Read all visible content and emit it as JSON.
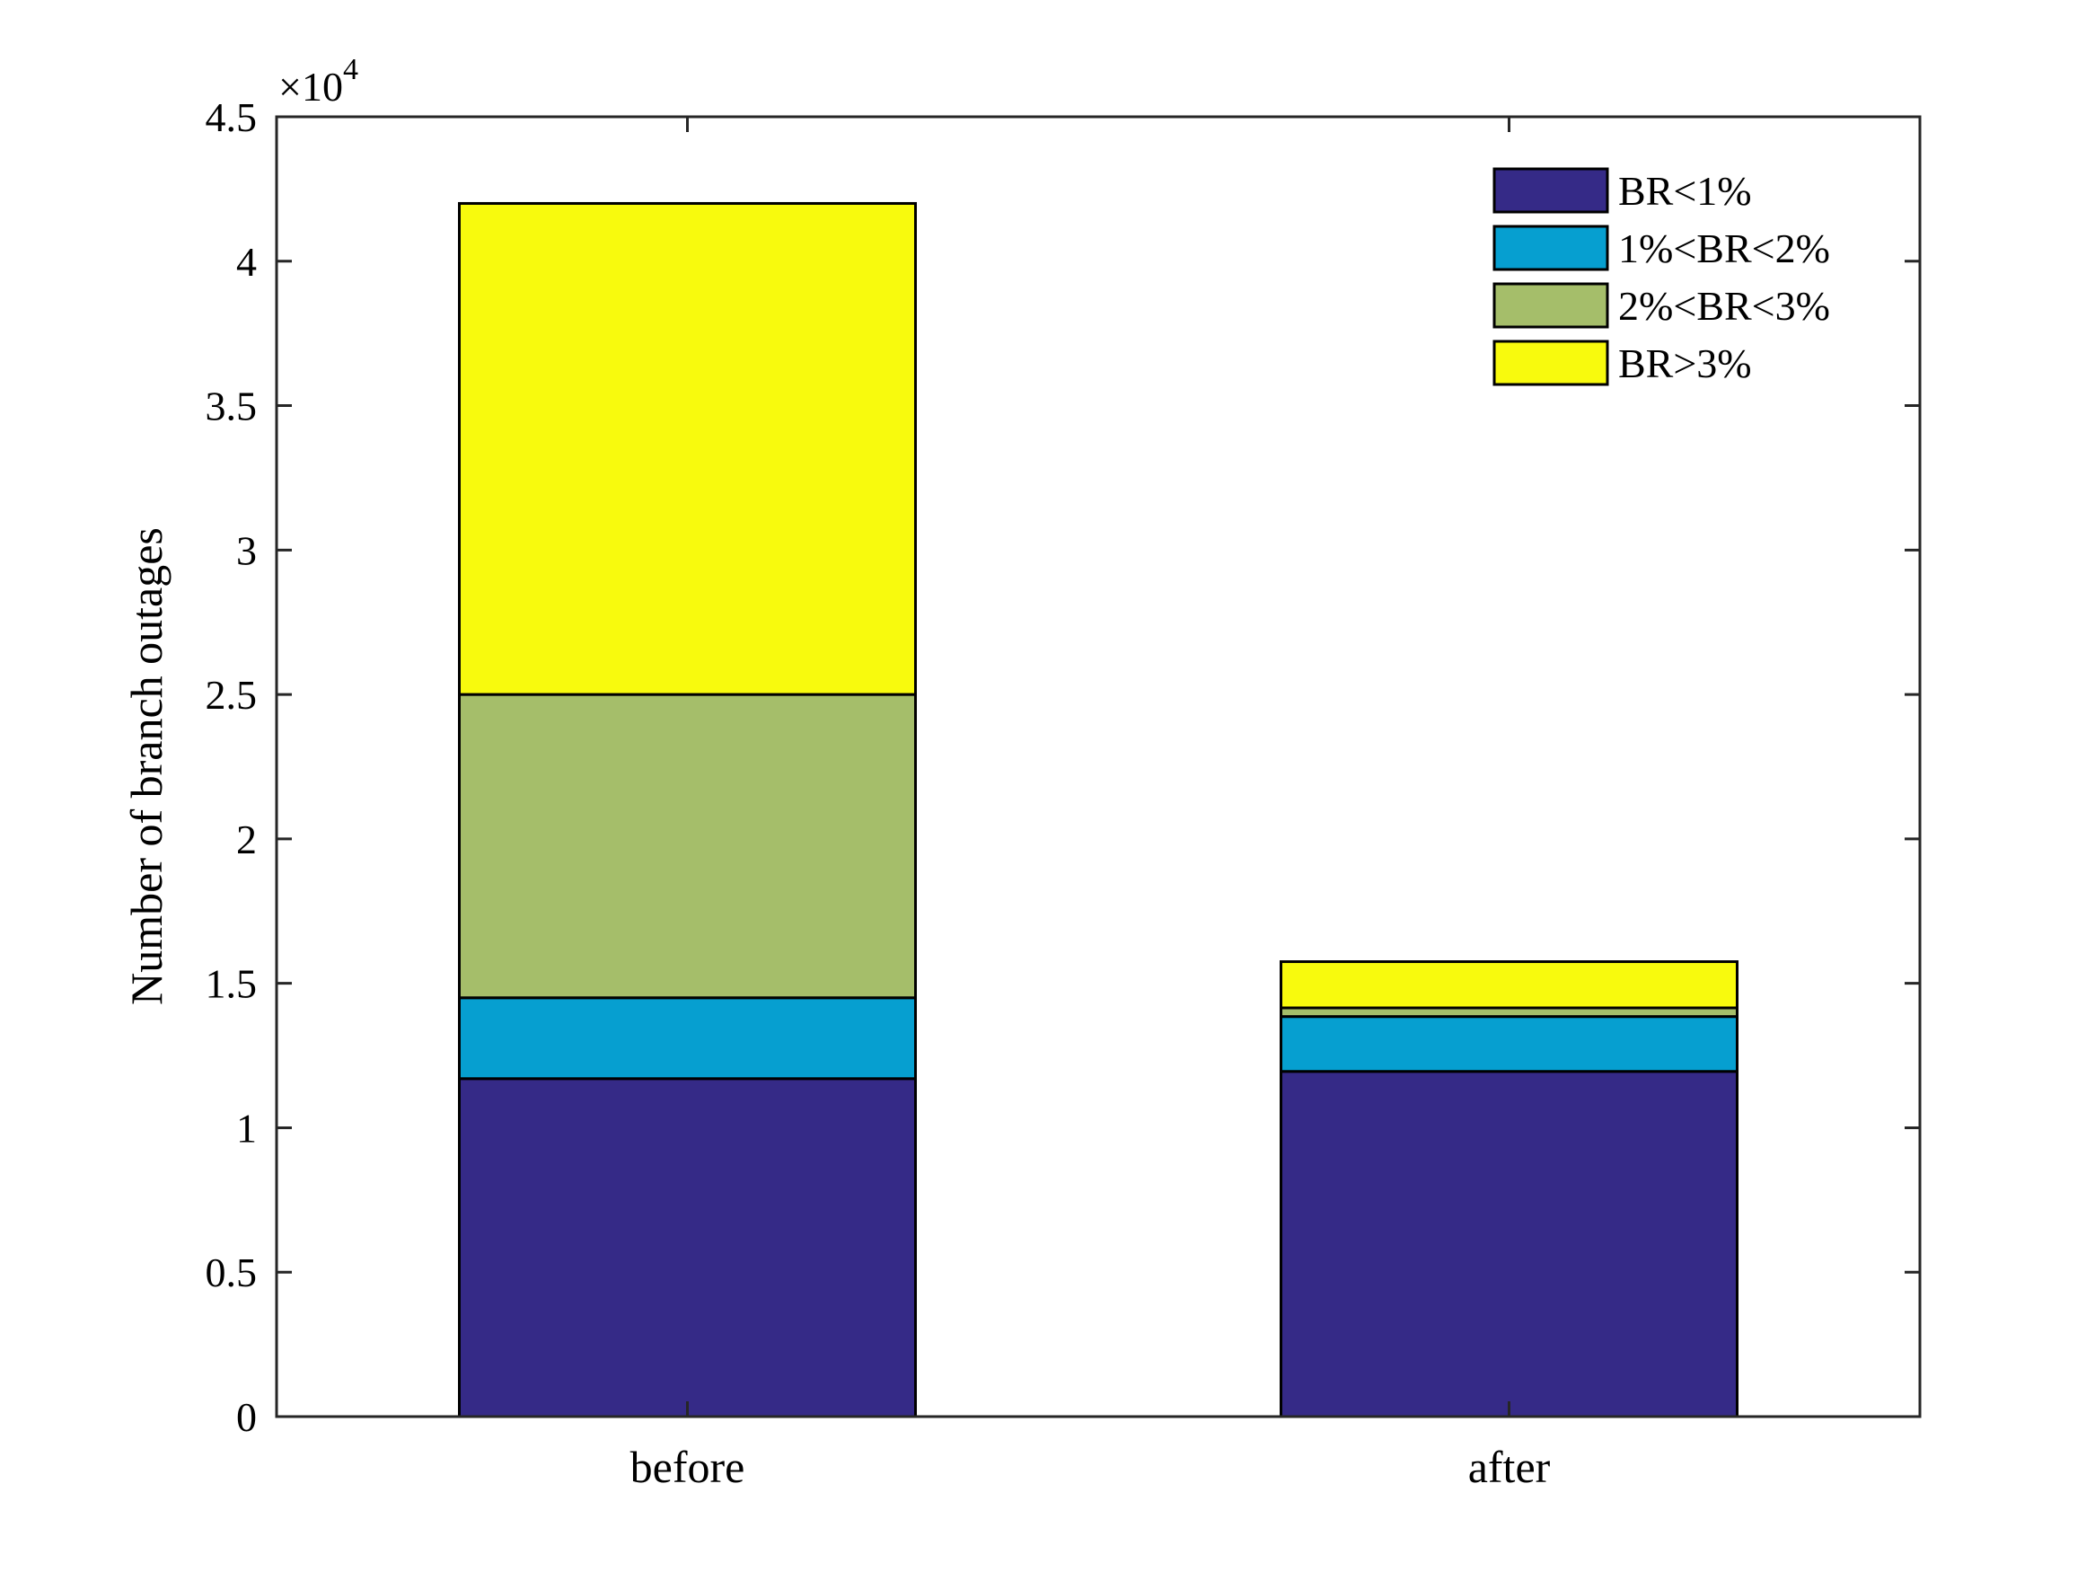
{
  "chart_data": {
    "type": "bar",
    "stacked": true,
    "categories": [
      "before",
      "after"
    ],
    "series": [
      {
        "name": "BR<1%",
        "color": "#352a87",
        "values": [
          11700,
          11950
        ]
      },
      {
        "name": "1%<BR<2%",
        "color": "#069fd0",
        "values": [
          2800,
          1900
        ]
      },
      {
        "name": "2%<BR<3%",
        "color": "#a5be6a",
        "values": [
          10500,
          300
        ]
      },
      {
        "name": "BR>3%",
        "color": "#f8fa0d",
        "values": [
          17000,
          1600
        ]
      }
    ],
    "ylabel": "Number of branch outages",
    "ylim": [
      0,
      45000
    ],
    "yticks": [
      0,
      0.5,
      1,
      1.5,
      2,
      2.5,
      3,
      3.5,
      4,
      4.5
    ],
    "exponent_base": "×10",
    "exponent_power": "4",
    "grid": false,
    "legend_position": "top-right"
  }
}
